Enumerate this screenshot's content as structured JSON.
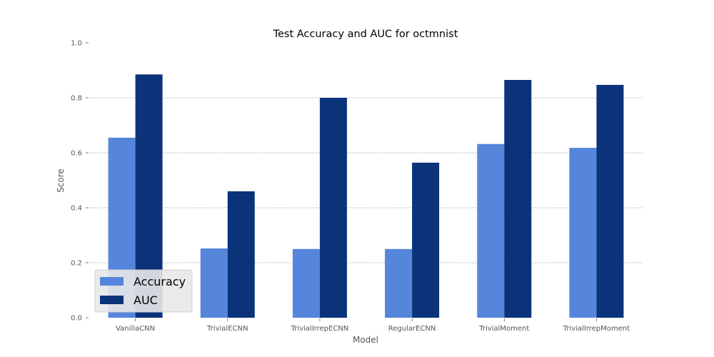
{
  "chart_data": {
    "type": "bar",
    "title": "Test Accuracy and AUC for octmnist",
    "xlabel": "Model",
    "ylabel": "Score",
    "ylim": [
      0,
      1.0
    ],
    "yticks": [
      "0.0",
      "0.2",
      "0.4",
      "0.6",
      "0.8",
      "1.0"
    ],
    "grid": "horizontal-dashed",
    "legend_position": "lower-left",
    "categories": [
      "VanillaCNN",
      "TrivialECNN",
      "TrivialIrrepECNN",
      "RegularECNN",
      "TrivialMoment",
      "TrivialIrrepMoment"
    ],
    "series": [
      {
        "name": "Accuracy",
        "color": "#5586db",
        "values": [
          0.655,
          0.252,
          0.25,
          0.25,
          0.632,
          0.618
        ]
      },
      {
        "name": "AUC",
        "color": "#0a337a",
        "values": [
          0.885,
          0.46,
          0.8,
          0.564,
          0.865,
          0.847
        ]
      }
    ]
  }
}
